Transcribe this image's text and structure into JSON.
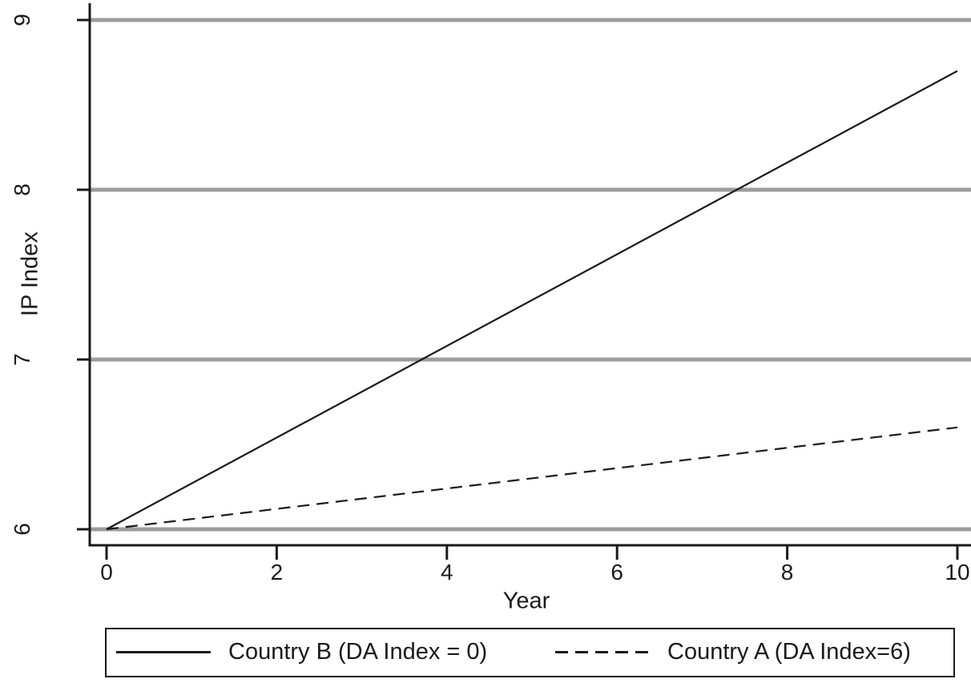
{
  "colors": {
    "foreground": "#1a1a1a",
    "gridline": "#9a9c9f",
    "background": "#ffffff"
  },
  "chart_data": {
    "type": "line",
    "title": "",
    "xlabel": "Year",
    "ylabel": "IP Index",
    "xlim": [
      0,
      10
    ],
    "ylim": [
      6,
      9
    ],
    "xticks": [
      "0",
      "2",
      "4",
      "6",
      "8",
      "10"
    ],
    "yticks": [
      "6",
      "7",
      "8",
      "9"
    ],
    "grid": "horizontal gray gridlines at each y tick",
    "legend_position": "bottom boxed",
    "series": [
      {
        "name": "Country B (DA Index = 0)",
        "style": "solid",
        "x": [
          0,
          10
        ],
        "y": [
          6.0,
          8.7
        ]
      },
      {
        "name": "Country A (DA Index=6)",
        "style": "dashed",
        "x": [
          0,
          10
        ],
        "y": [
          6.0,
          6.6
        ]
      }
    ]
  }
}
